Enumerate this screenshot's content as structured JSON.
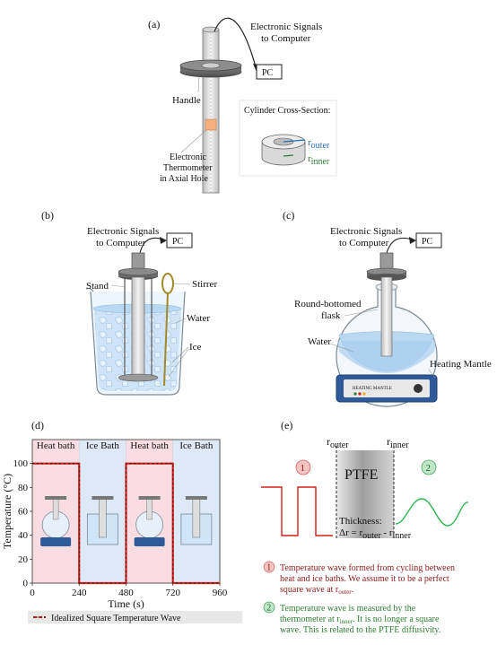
{
  "panel_a": {
    "label": "(a)",
    "signals_line1": "Electronic Signals",
    "signals_line2": "to Computer",
    "pc": "PC",
    "handle": "Handle",
    "thermo_line1": "Electronic",
    "thermo_line2": "Thermometer",
    "thermo_line3": "in Axial Hole",
    "cross_title": "Cylinder Cross-Section:",
    "r_outer": "r",
    "r_outer_sub": "outer",
    "r_inner": "r",
    "r_inner_sub": "inner"
  },
  "panel_b": {
    "label": "(b)",
    "signals_line1": "Electronic Signals",
    "signals_line2": "to Computer",
    "pc": "PC",
    "stand": "Stand",
    "stirrer": "Stirrer",
    "water": "Water",
    "ice": "Ice"
  },
  "panel_c": {
    "label": "(c)",
    "signals_line1": "Electronic Signals",
    "signals_line2": "to Computer",
    "pc": "PC",
    "flask_line1": "Round-bottomed",
    "flask_line2": "flask",
    "water": "Water",
    "mantle": "Heating Mantle",
    "mantle_plate": "HEATING MANTLE"
  },
  "panel_d": {
    "label": "(d)",
    "legend": "Idealized Square Temperature Wave",
    "colors": {
      "heat": "#f9dde2",
      "ice": "#dde9f6",
      "wave": "#d0201a"
    },
    "chart_data": {
      "type": "line",
      "xlabel": "Time (s)",
      "ylabel": "Temperature (°C)",
      "xlim": [
        0,
        960
      ],
      "ylim": [
        0,
        120
      ],
      "xticks": [
        "0",
        "240",
        "480",
        "720",
        "960"
      ],
      "yticks": [
        "0",
        "20",
        "40",
        "60",
        "80",
        "100"
      ],
      "phases": [
        "Heat bath",
        "Ice Bath",
        "Heat bath",
        "Ice Bath"
      ],
      "series": [
        {
          "name": "Idealized Square Temperature Wave",
          "x": [
            0,
            240,
            240,
            480,
            480,
            720,
            720,
            960
          ],
          "y": [
            100,
            100,
            0,
            0,
            100,
            100,
            0,
            0
          ]
        }
      ]
    }
  },
  "panel_e": {
    "label": "(e)",
    "r_outer": "r",
    "r_outer_sub": "outer",
    "r_inner": "r",
    "r_inner_sub": "inner",
    "ptfe": "PTFE",
    "thickness": "Thickness:",
    "formula_a": "Δr = r",
    "formula_sub1": "outer",
    "formula_b": " - r",
    "formula_sub2": "inner",
    "badge1": "1",
    "badge2": "2",
    "note1_line1": "Temperature wave formed from cycling between",
    "note1_line2": "heat and ice baths. We assume it to be a perfect",
    "note1_line3": "square wave at r",
    "note1_sub": "outer",
    "note1_end": ".",
    "note2_line1a": "Temperature wave is measured by the",
    "note2_line2a": "thermometer at r",
    "note2_sub": "inner",
    "note2_line2b": ". It is no longer a square",
    "note2_line3": "wave. This is related to the PTFE diffusivity."
  }
}
